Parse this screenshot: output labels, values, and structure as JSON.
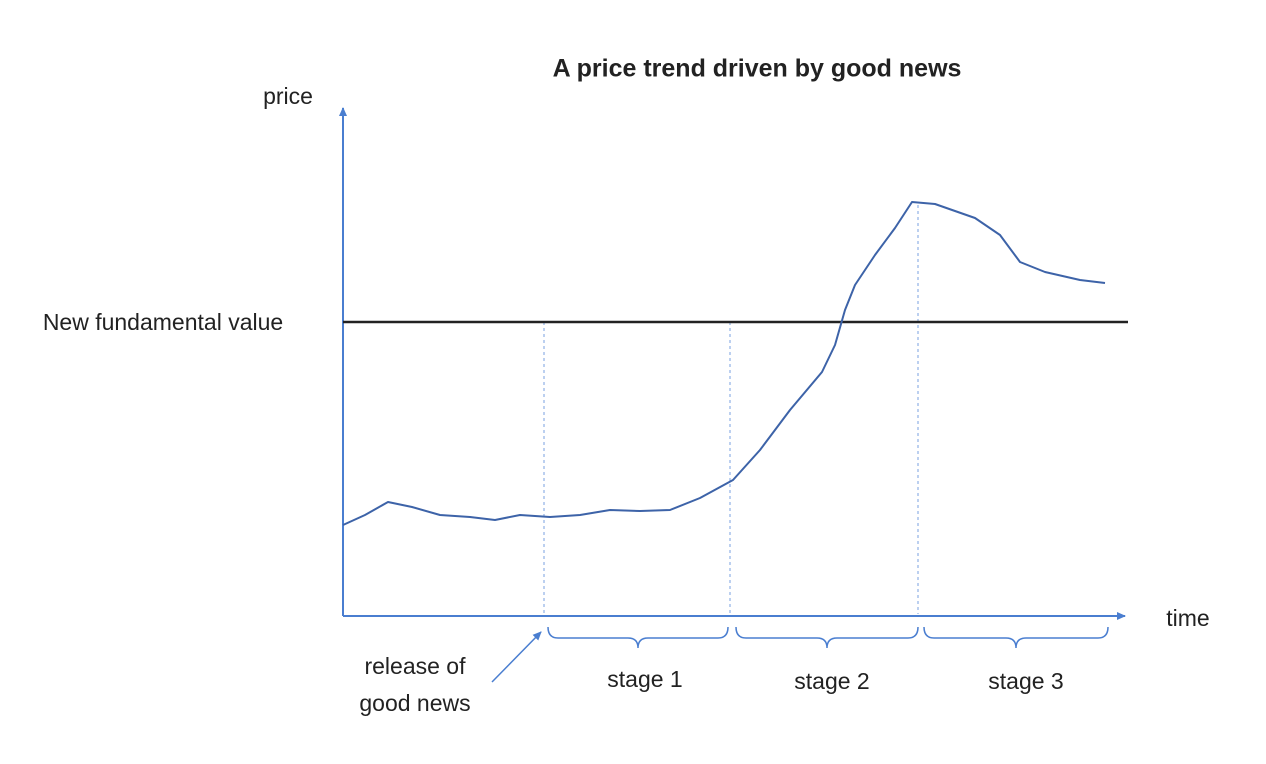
{
  "title": "A price trend driven by good news",
  "axes": {
    "y_label": "price",
    "x_label": "time"
  },
  "reference_line": {
    "label": "New fundamental value"
  },
  "annotation": {
    "lines": [
      "release of",
      "good news"
    ]
  },
  "stages": [
    "stage 1",
    "stage 2",
    "stage 3"
  ]
}
